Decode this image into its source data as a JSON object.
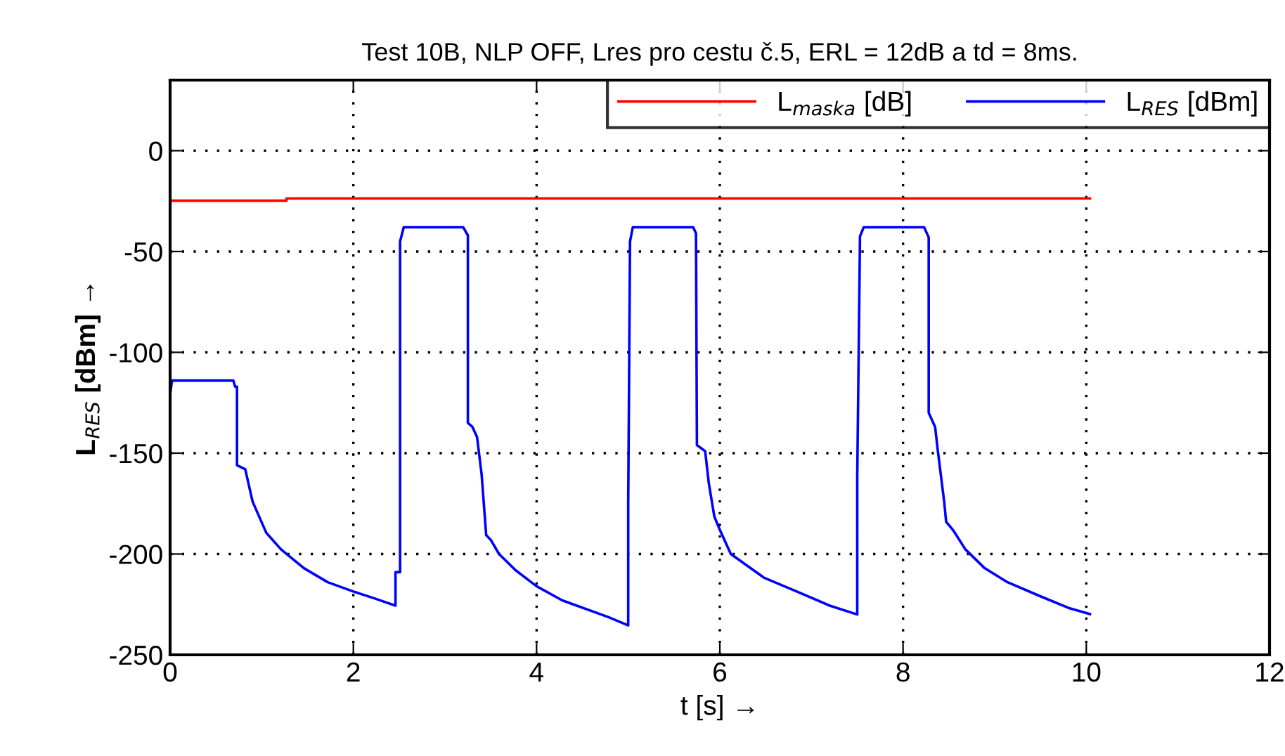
{
  "chart_data": {
    "type": "line",
    "title": "Test 10B, NLP OFF, Lres pro cestu č.5, ERL = 12dB a td = 8ms.",
    "xlabel": "t [s] →",
    "ylabel": "L$_{RES}$ [dBm] →",
    "xlim": [
      0,
      12
    ],
    "xticks": [
      0,
      2,
      4,
      6,
      8,
      10,
      12
    ],
    "ylim": [
      -250,
      35
    ],
    "yticks": [
      0,
      -50,
      -100,
      -150,
      -200,
      -250
    ],
    "grid": true,
    "legend": "top right",
    "line_style": "solid",
    "marker": "none",
    "series": [
      {
        "name": "L$_{maska}$ [dB]",
        "color": "#ff0000",
        "x": [
          0,
          1.27,
          1.27,
          10.04
        ],
        "values": [
          -24.8,
          -24.8,
          -23.7,
          -23.7
        ]
      },
      {
        "name": "L$_{RES}$ [dBm]",
        "color": "#0000ff",
        "x": [
          0,
          0.02,
          0.69,
          0.71,
          0.73,
          0.73,
          0.82,
          0.9,
          1.05,
          1.21,
          1.46,
          1.72,
          2.0,
          2.23,
          2.46,
          2.46,
          2.51,
          2.51,
          2.55,
          3.2,
          3.25,
          3.25,
          3.3,
          3.35,
          3.4,
          3.45,
          3.5,
          3.59,
          3.77,
          4.0,
          4.28,
          4.79,
          5.0,
          5.0,
          5.02,
          5.05,
          5.71,
          5.74,
          5.75,
          5.84,
          5.88,
          5.94,
          6.0,
          6.12,
          6.48,
          6.84,
          7.2,
          7.5,
          7.5,
          7.53,
          7.57,
          8.23,
          8.28,
          8.28,
          8.35,
          8.38,
          8.45,
          8.47,
          8.55,
          8.68,
          8.89,
          9.14,
          9.5,
          9.81,
          10.04
        ],
        "values": [
          -121,
          -114,
          -114,
          -117,
          -117,
          -156,
          -158,
          -174,
          -189.5,
          -197.7,
          -207,
          -214,
          -218.6,
          -222,
          -225.6,
          -209,
          -209,
          -45,
          -38,
          -38,
          -42,
          -135,
          -137,
          -142,
          -160.5,
          -190.7,
          -193,
          -200,
          -208,
          -216,
          -223,
          -231.4,
          -235.4,
          -175,
          -45,
          -38,
          -38,
          -41,
          -146,
          -149,
          -165,
          -181.4,
          -188,
          -200,
          -211.7,
          -218.6,
          -225.6,
          -230,
          -162,
          -42.5,
          -38,
          -38,
          -43,
          -130,
          -137,
          -149,
          -174.5,
          -184,
          -188.4,
          -197.7,
          -207,
          -214,
          -221,
          -226.8,
          -229.8
        ]
      }
    ]
  }
}
